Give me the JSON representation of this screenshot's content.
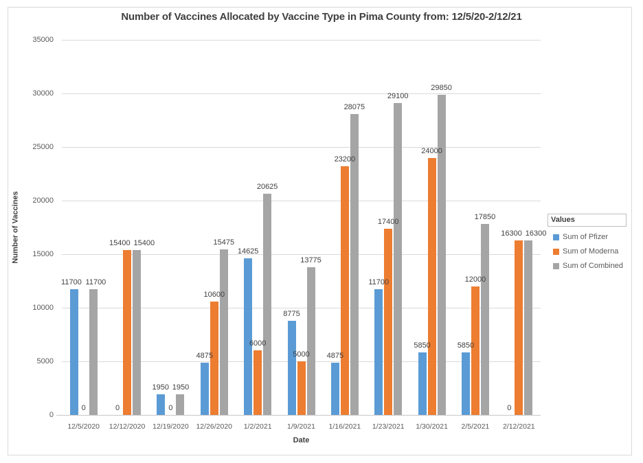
{
  "chart_data": {
    "type": "bar",
    "title": "Number of Vaccines Allocated by Vaccine Type in Pima County from: 12/5/20-2/12/21",
    "xlabel": "Date",
    "ylabel": "Number of Vaccines",
    "ylim": [
      0,
      35000
    ],
    "ytick_step": 5000,
    "grid": true,
    "data_labels": true,
    "legend_title": "Values",
    "legend_position": "right",
    "categories": [
      "12/5/2020",
      "12/12/2020",
      "12/19/2020",
      "12/26/2020",
      "1/2/2021",
      "1/9/2021",
      "1/16/2021",
      "1/23/2021",
      "1/30/2021",
      "2/5/2021",
      "2/12/2021"
    ],
    "series": [
      {
        "name": "Sum of Pfizer",
        "color": "#5B9BD5",
        "values": [
          11700,
          0,
          1950,
          4875,
          14625,
          8775,
          4875,
          11700,
          5850,
          5850,
          0
        ]
      },
      {
        "name": "Sum of Moderna",
        "color": "#ED7D31",
        "values": [
          0,
          15400,
          0,
          10600,
          6000,
          5000,
          23200,
          17400,
          24000,
          12000,
          16300
        ]
      },
      {
        "name": "Sum of Combined",
        "color": "#A5A5A5",
        "values": [
          11700,
          15400,
          1950,
          15475,
          20625,
          13775,
          28075,
          29100,
          29850,
          17850,
          16300
        ]
      }
    ]
  },
  "colors": {
    "frame_border": "#D9D9D9",
    "gridline": "#D9D9D9",
    "axis_line": "#C6C6C6",
    "title_text": "#3F3F3F",
    "tick_text": "#595959",
    "data_label_text": "#404040"
  }
}
